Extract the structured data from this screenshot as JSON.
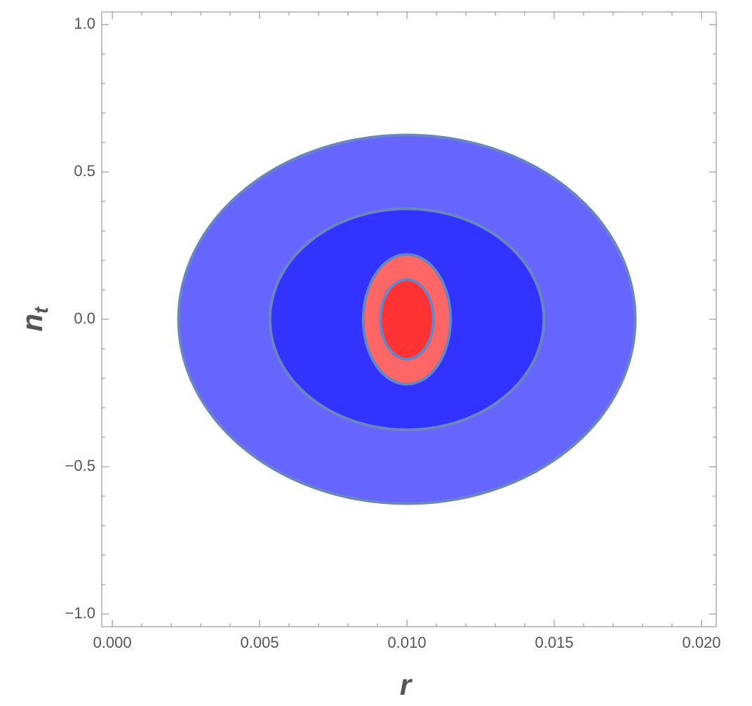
{
  "chart_data": {
    "type": "contour",
    "xlabel": "r",
    "ylabel": {
      "base": "n",
      "subscript": "t"
    },
    "xlim": [
      -0.00036,
      0.0205
    ],
    "ylim": [
      -1.043,
      1.043
    ],
    "xticks": [
      {
        "value": 0,
        "label": "0.000"
      },
      {
        "value": 0.005,
        "label": "0.005"
      },
      {
        "value": 0.01,
        "label": "0.010"
      },
      {
        "value": 0.015,
        "label": "0.015"
      },
      {
        "value": 0.02,
        "label": "0.020"
      }
    ],
    "yticks": [
      {
        "value": -1,
        "label": "−1.0"
      },
      {
        "value": -0.5,
        "label": "−0.5"
      },
      {
        "value": 0,
        "label": "0.0"
      },
      0.5,
      {
        "value": 1,
        "label": "1.0"
      }
    ],
    "xminorticks": [
      0.001,
      0.002,
      0.003,
      0.004,
      0.006,
      0.007,
      0.008,
      0.009,
      0.011,
      0.012,
      0.013,
      0.014,
      0.016,
      0.017,
      0.018,
      0.019
    ],
    "yminorticks": [
      -0.9,
      -0.8,
      -0.7,
      -0.6,
      -0.4,
      -0.3,
      -0.2,
      -0.1,
      0.1,
      0.2,
      0.3,
      0.4,
      0.6,
      0.7,
      0.8,
      0.9
    ],
    "edge_color": "#6a85c2",
    "regions": [
      {
        "cx": 0.01,
        "cy": 0,
        "rx": 0.00775,
        "ry": 0.625,
        "color": "#6666ff"
      },
      {
        "cx": 0.01,
        "cy": 0,
        "rx": 0.00465,
        "ry": 0.375,
        "color": "#3333ff"
      },
      {
        "cx": 0.01,
        "cy": 0,
        "rx": 0.00148,
        "ry": 0.22,
        "color": "#ff6666"
      },
      {
        "cx": 0.01,
        "cy": 0,
        "rx": 0.0009,
        "ry": 0.135,
        "color": "#ff3333"
      }
    ]
  }
}
